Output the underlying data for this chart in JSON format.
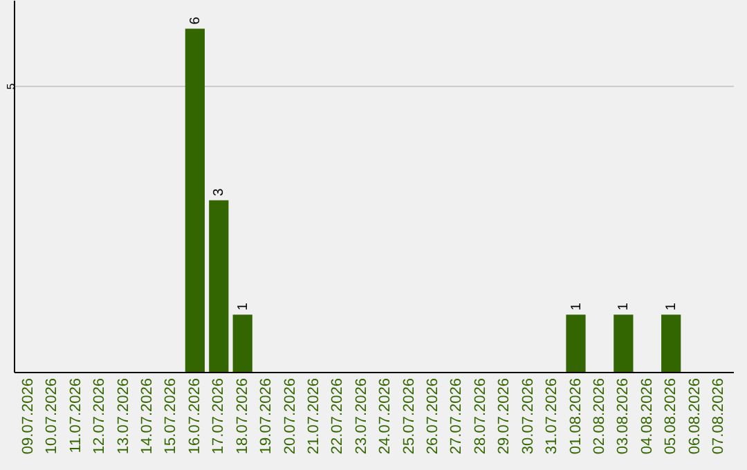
{
  "chart_data": {
    "type": "bar",
    "categories": [
      "09.07.2026",
      "10.07.2026",
      "11.07.2026",
      "12.07.2026",
      "13.07.2026",
      "14.07.2026",
      "15.07.2026",
      "16.07.2026",
      "17.07.2026",
      "18.07.2026",
      "19.07.2026",
      "20.07.2026",
      "21.07.2026",
      "22.07.2026",
      "23.07.2026",
      "24.07.2026",
      "25.07.2026",
      "26.07.2026",
      "27.07.2026",
      "28.07.2026",
      "29.07.2026",
      "30.07.2026",
      "31.07.2026",
      "01.08.2026",
      "02.08.2026",
      "03.08.2026",
      "04.08.2026",
      "05.08.2026",
      "06.08.2026",
      "07.08.2026"
    ],
    "values": [
      0,
      0,
      0,
      0,
      0,
      0,
      0,
      6,
      3,
      1,
      0,
      0,
      0,
      0,
      0,
      0,
      0,
      0,
      0,
      0,
      0,
      0,
      0,
      1,
      0,
      1,
      0,
      1,
      0,
      0
    ],
    "value_labels": [
      null,
      null,
      null,
      null,
      null,
      null,
      null,
      "6",
      "3",
      "1",
      null,
      null,
      null,
      null,
      null,
      null,
      null,
      null,
      null,
      null,
      null,
      null,
      null,
      "1",
      null,
      "1",
      null,
      "1",
      null,
      null
    ],
    "color": "#336600",
    "ylim": [
      0,
      6.5
    ],
    "yticks": [
      5
    ],
    "grid": "y"
  }
}
